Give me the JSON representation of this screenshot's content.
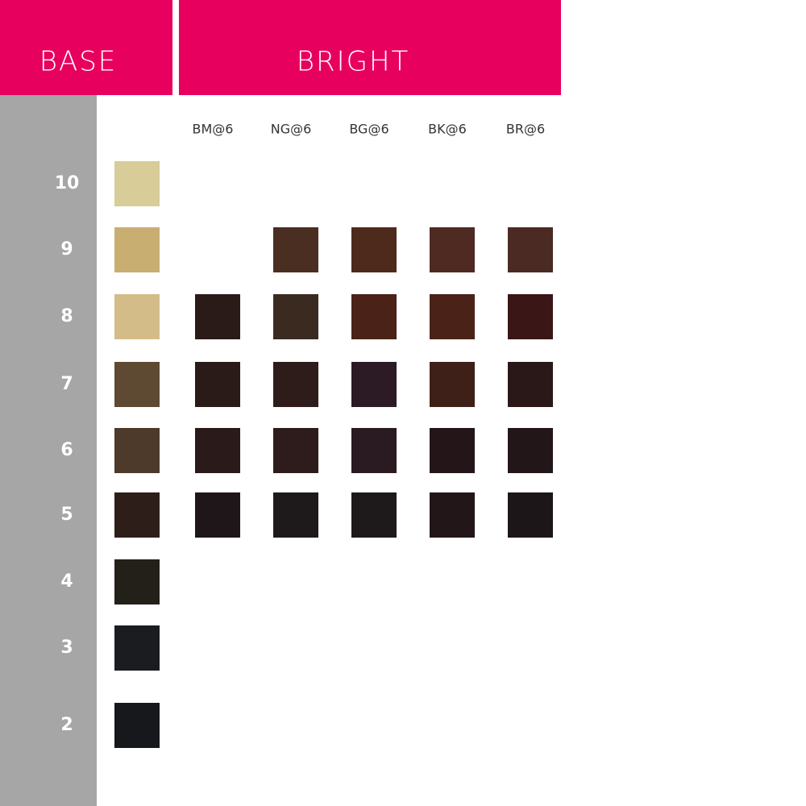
{
  "header": {
    "base": "BASE",
    "bright": "BRIGHT"
  },
  "columns": [
    "BM@6",
    "NG@6",
    "BG@6",
    "BK@6",
    "BR@6"
  ],
  "rows": [
    {
      "level": 10,
      "base_color": "#d8cc98",
      "bright_colors": [
        null,
        null,
        null,
        null,
        null
      ]
    },
    {
      "level": 9,
      "base_color": "#c9ae72",
      "bright_colors": [
        null,
        "#4a2e22",
        "#4e2a1c",
        "#4e2a22",
        "#4a2a22"
      ]
    },
    {
      "level": 8,
      "base_color": "#d4bc88",
      "bright_colors": [
        "#2a1a18",
        "#3a2a20",
        "#4a2218",
        "#4a2218",
        "#3a1616"
      ]
    },
    {
      "level": 7,
      "base_color": "#5e4a32",
      "bright_colors": [
        "#2a1a18",
        "#2e1c1a",
        "#2c1a24",
        "#3e2018",
        "#2a1818"
      ]
    },
    {
      "level": 6,
      "base_color": "#4e3a2a",
      "bright_colors": [
        "#2a1a1a",
        "#2e1c1c",
        "#2a1a22",
        "#241618",
        "#221618"
      ]
    },
    {
      "level": 5,
      "base_color": "#2e1e1a",
      "bright_colors": [
        "#1e1618",
        "#1e1a1c",
        "#1e1a1c",
        "#221618",
        "#1c1618"
      ]
    },
    {
      "level": 4,
      "base_color": "#222018",
      "bright_colors": [
        null,
        null,
        null,
        null,
        null
      ]
    },
    {
      "level": 3,
      "base_color": "#1a1c20",
      "bright_colors": [
        null,
        null,
        null,
        null,
        null
      ]
    },
    {
      "level": 2,
      "base_color": "#16181c",
      "bright_colors": [
        null,
        null,
        null,
        null,
        null
      ]
    }
  ]
}
